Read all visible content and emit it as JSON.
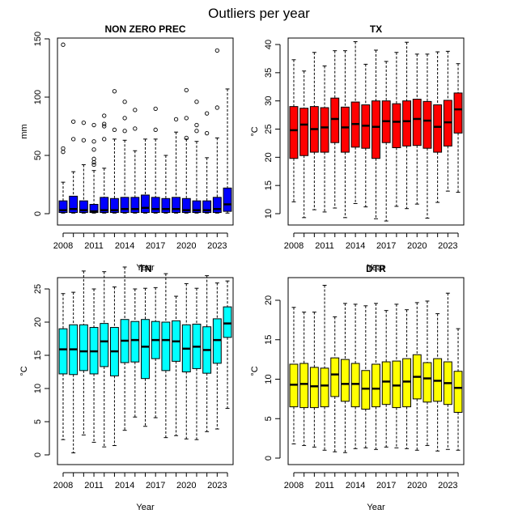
{
  "title": "Outliers per year",
  "chart_data": [
    {
      "type": "boxplot",
      "title": "NON ZERO PREC",
      "xlabel": "Year",
      "ylabel": "mm",
      "color": "#0000ff",
      "ylim": [
        0,
        150
      ],
      "yticks": [
        0,
        50,
        100,
        150
      ],
      "xtick_labels": [
        "2008",
        "2011",
        "2014",
        "2017",
        "2020",
        "2023"
      ],
      "years": [
        2008,
        2009,
        2010,
        2011,
        2012,
        2013,
        2014,
        2015,
        2016,
        2017,
        2018,
        2019,
        2020,
        2021,
        2022,
        2023,
        2024
      ],
      "boxes": [
        {
          "whislo": 0.5,
          "q1": 1,
          "med": 3,
          "q3": 11,
          "whishi": 27,
          "outliers": [
            53,
            56,
            145
          ]
        },
        {
          "whislo": 0.5,
          "q1": 1,
          "med": 4,
          "q3": 15,
          "whishi": 36,
          "outliers": [
            64,
            79
          ]
        },
        {
          "whislo": 0.5,
          "q1": 1,
          "med": 3,
          "q3": 11,
          "whishi": 42,
          "outliers": [
            63,
            78
          ]
        },
        {
          "whislo": 0.5,
          "q1": 1,
          "med": 2,
          "q3": 8,
          "whishi": 37,
          "outliers": [
            42,
            44,
            47,
            55,
            62,
            76
          ]
        },
        {
          "whislo": 0.5,
          "q1": 1,
          "med": 3,
          "q3": 14,
          "whishi": 39,
          "outliers": [
            64,
            75,
            77,
            84
          ]
        },
        {
          "whislo": 0.5,
          "q1": 1,
          "med": 3,
          "q3": 13,
          "whishi": 64,
          "outliers": [
            72,
            105
          ]
        },
        {
          "whislo": 0.5,
          "q1": 1,
          "med": 4,
          "q3": 14,
          "whishi": 63,
          "outliers": [
            71,
            82,
            96
          ]
        },
        {
          "whislo": 0.5,
          "q1": 1,
          "med": 4,
          "q3": 14,
          "whishi": 54,
          "outliers": [
            73,
            89
          ]
        },
        {
          "whislo": 0.5,
          "q1": 1,
          "med": 5,
          "q3": 16,
          "whishi": 64,
          "outliers": []
        },
        {
          "whislo": 0.5,
          "q1": 1,
          "med": 4,
          "q3": 14,
          "whishi": 64,
          "outliers": [
            72,
            90
          ]
        },
        {
          "whislo": 0.5,
          "q1": 1,
          "med": 4,
          "q3": 13,
          "whishi": 50,
          "outliers": []
        },
        {
          "whislo": 0.5,
          "q1": 1,
          "med": 4,
          "q3": 14,
          "whishi": 70,
          "outliers": [
            81
          ]
        },
        {
          "whislo": 0.5,
          "q1": 1,
          "med": 3,
          "q3": 13,
          "whishi": 64,
          "outliers": [
            65,
            82,
            106
          ]
        },
        {
          "whislo": 0.5,
          "q1": 1,
          "med": 3,
          "q3": 11,
          "whishi": 62,
          "outliers": [
            71,
            76,
            96
          ]
        },
        {
          "whislo": 0.5,
          "q1": 1,
          "med": 3,
          "q3": 11,
          "whishi": 48,
          "outliers": [
            69,
            86
          ]
        },
        {
          "whislo": 0.5,
          "q1": 1,
          "med": 4,
          "q3": 14,
          "whishi": 65,
          "outliers": [
            91,
            140
          ]
        },
        {
          "whislo": 0.5,
          "q1": 2,
          "med": 8,
          "q3": 22,
          "whishi": 107,
          "outliers": []
        }
      ]
    },
    {
      "type": "boxplot",
      "title": "TX",
      "xlabel": "Year",
      "ylabel": "°C",
      "color": "#ff0000",
      "ylim": [
        10,
        40
      ],
      "yticks": [
        10,
        15,
        20,
        25,
        30,
        35,
        40
      ],
      "xtick_labels": [
        "2008",
        "2011",
        "2014",
        "2017",
        "2020",
        "2023"
      ],
      "years": [
        2008,
        2009,
        2010,
        2011,
        2012,
        2013,
        2014,
        2015,
        2016,
        2017,
        2018,
        2019,
        2020,
        2021,
        2022,
        2023,
        2024
      ],
      "boxes": [
        {
          "whislo": 12.1,
          "q1": 19.8,
          "med": 24.8,
          "q3": 29.0,
          "whishi": 37.3,
          "outliers": []
        },
        {
          "whislo": 9.3,
          "q1": 20.3,
          "med": 25.8,
          "q3": 28.7,
          "whishi": 35.3,
          "outliers": []
        },
        {
          "whislo": 10.7,
          "q1": 20.9,
          "med": 25.0,
          "q3": 29.0,
          "whishi": 38.6,
          "outliers": []
        },
        {
          "whislo": 10.3,
          "q1": 20.9,
          "med": 25.3,
          "q3": 28.8,
          "whishi": 36.2,
          "outliers": []
        },
        {
          "whislo": 11.0,
          "q1": 22.6,
          "med": 26.8,
          "q3": 30.5,
          "whishi": 38.9,
          "outliers": []
        },
        {
          "whislo": 9.3,
          "q1": 20.9,
          "med": 25.3,
          "q3": 28.9,
          "whishi": 38.9,
          "outliers": []
        },
        {
          "whislo": 11.8,
          "q1": 21.8,
          "med": 25.9,
          "q3": 29.8,
          "whishi": 40.5,
          "outliers": []
        },
        {
          "whislo": 11.2,
          "q1": 21.6,
          "med": 25.6,
          "q3": 29.3,
          "whishi": 36.5,
          "outliers": []
        },
        {
          "whislo": 9.1,
          "q1": 19.8,
          "med": 25.4,
          "q3": 30.0,
          "whishi": 39.0,
          "outliers": []
        },
        {
          "whislo": 8.7,
          "q1": 22.6,
          "med": 26.4,
          "q3": 30.0,
          "whishi": 37.0,
          "outliers": []
        },
        {
          "whislo": 11.3,
          "q1": 21.7,
          "med": 26.3,
          "q3": 29.5,
          "whishi": 38.6,
          "outliers": []
        },
        {
          "whislo": 10.9,
          "q1": 22.0,
          "med": 26.4,
          "q3": 30.0,
          "whishi": 40.4,
          "outliers": []
        },
        {
          "whislo": 11.7,
          "q1": 22.1,
          "med": 26.8,
          "q3": 30.3,
          "whishi": 38.3,
          "outliers": []
        },
        {
          "whislo": 9.2,
          "q1": 21.6,
          "med": 26.5,
          "q3": 29.9,
          "whishi": 38.3,
          "outliers": []
        },
        {
          "whislo": 12.0,
          "q1": 20.9,
          "med": 25.4,
          "q3": 29.3,
          "whishi": 38.7,
          "outliers": []
        },
        {
          "whislo": 14.0,
          "q1": 22.0,
          "med": 26.2,
          "q3": 30.1,
          "whishi": 38.8,
          "outliers": []
        },
        {
          "whislo": 13.8,
          "q1": 24.3,
          "med": 28.5,
          "q3": 31.4,
          "whishi": 36.6,
          "outliers": []
        }
      ]
    },
    {
      "type": "boxplot",
      "title": "TN",
      "xlabel": "Year",
      "ylabel": "°C",
      "color": "#00ffff",
      "ylim": [
        0,
        25
      ],
      "yticks": [
        0,
        5,
        10,
        15,
        20,
        25
      ],
      "xtick_labels": [
        "2008",
        "2011",
        "2014",
        "2017",
        "2020",
        "2023"
      ],
      "years": [
        2008,
        2009,
        2010,
        2011,
        2012,
        2013,
        2014,
        2015,
        2016,
        2017,
        2018,
        2019,
        2020,
        2021,
        2022,
        2023,
        2024
      ],
      "boxes": [
        {
          "whislo": 2.3,
          "q1": 12.2,
          "med": 15.9,
          "q3": 19.0,
          "whishi": 24.3,
          "outliers": []
        },
        {
          "whislo": 0.3,
          "q1": 12.1,
          "med": 15.9,
          "q3": 19.6,
          "whishi": 24.5,
          "outliers": []
        },
        {
          "whislo": 3.0,
          "q1": 12.7,
          "med": 15.6,
          "q3": 19.6,
          "whishi": 27.7,
          "outliers": []
        },
        {
          "whislo": 1.9,
          "q1": 12.2,
          "med": 15.6,
          "q3": 19.2,
          "whishi": 25.0,
          "outliers": []
        },
        {
          "whislo": 1.2,
          "q1": 13.3,
          "med": 17.1,
          "q3": 19.8,
          "whishi": 27.6,
          "outliers": []
        },
        {
          "whislo": 1.4,
          "q1": 11.9,
          "med": 15.6,
          "q3": 19.2,
          "whishi": 25.3,
          "outliers": []
        },
        {
          "whislo": 3.7,
          "q1": 13.9,
          "med": 17.2,
          "q3": 20.4,
          "whishi": 28.3,
          "outliers": []
        },
        {
          "whislo": 5.7,
          "q1": 14.0,
          "med": 17.3,
          "q3": 20.1,
          "whishi": 25.0,
          "outliers": []
        },
        {
          "whislo": 4.3,
          "q1": 11.5,
          "med": 16.3,
          "q3": 20.4,
          "whishi": 25.1,
          "outliers": []
        },
        {
          "whislo": 5.6,
          "q1": 14.5,
          "med": 17.3,
          "q3": 20.1,
          "whishi": 25.2,
          "outliers": []
        },
        {
          "whislo": 2.6,
          "q1": 12.7,
          "med": 17.3,
          "q3": 20.0,
          "whishi": 27.3,
          "outliers": []
        },
        {
          "whislo": 2.9,
          "q1": 14.1,
          "med": 17.1,
          "q3": 20.2,
          "whishi": 23.9,
          "outliers": []
        },
        {
          "whislo": 2.4,
          "q1": 12.5,
          "med": 16.0,
          "q3": 19.6,
          "whishi": 25.8,
          "outliers": []
        },
        {
          "whislo": 2.3,
          "q1": 13.0,
          "med": 16.3,
          "q3": 19.7,
          "whishi": 25.1,
          "outliers": []
        },
        {
          "whislo": 3.5,
          "q1": 12.3,
          "med": 15.8,
          "q3": 19.3,
          "whishi": 27.0,
          "outliers": []
        },
        {
          "whislo": 3.9,
          "q1": 13.8,
          "med": 17.3,
          "q3": 20.5,
          "whishi": 25.9,
          "outliers": []
        },
        {
          "whislo": 7.0,
          "q1": 17.7,
          "med": 19.8,
          "q3": 22.3,
          "whishi": 26.2,
          "outliers": []
        }
      ]
    },
    {
      "type": "boxplot",
      "title": "DTR",
      "xlabel": "Year",
      "ylabel": "°C",
      "color": "#ffff00",
      "ylim": [
        0,
        20
      ],
      "yticks": [
        0,
        5,
        10,
        15,
        20
      ],
      "xtick_labels": [
        "2008",
        "2011",
        "2014",
        "2017",
        "2020",
        "2023"
      ],
      "years": [
        2008,
        2009,
        2010,
        2011,
        2012,
        2013,
        2014,
        2015,
        2016,
        2017,
        2018,
        2019,
        2020,
        2021,
        2022,
        2023,
        2024
      ],
      "boxes": [
        {
          "whislo": 1.8,
          "q1": 6.5,
          "med": 9.3,
          "q3": 11.9,
          "whishi": 19.1,
          "outliers": []
        },
        {
          "whislo": 1.6,
          "q1": 6.4,
          "med": 9.4,
          "q3": 12.0,
          "whishi": 18.5,
          "outliers": []
        },
        {
          "whislo": 1.4,
          "q1": 6.4,
          "med": 9.1,
          "q3": 11.5,
          "whishi": 18.5,
          "outliers": []
        },
        {
          "whislo": 1.0,
          "q1": 6.5,
          "med": 9.2,
          "q3": 11.4,
          "whishi": 21.9,
          "outliers": []
        },
        {
          "whislo": 0.8,
          "q1": 7.8,
          "med": 10.6,
          "q3": 12.7,
          "whishi": 17.9,
          "outliers": []
        },
        {
          "whislo": 0.7,
          "q1": 7.2,
          "med": 9.4,
          "q3": 12.5,
          "whishi": 19.6,
          "outliers": []
        },
        {
          "whislo": 1.2,
          "q1": 6.5,
          "med": 9.4,
          "q3": 12.0,
          "whishi": 19.5,
          "outliers": []
        },
        {
          "whislo": 1.3,
          "q1": 6.2,
          "med": 8.8,
          "q3": 11.1,
          "whishi": 19.3,
          "outliers": []
        },
        {
          "whislo": 1.1,
          "q1": 6.5,
          "med": 8.8,
          "q3": 11.9,
          "whishi": 19.6,
          "outliers": []
        },
        {
          "whislo": 1.4,
          "q1": 6.8,
          "med": 9.7,
          "q3": 12.2,
          "whishi": 18.7,
          "outliers": []
        },
        {
          "whislo": 1.3,
          "q1": 6.4,
          "med": 9.2,
          "q3": 12.3,
          "whishi": 19.5,
          "outliers": []
        },
        {
          "whislo": 1.2,
          "q1": 6.5,
          "med": 9.7,
          "q3": 12.6,
          "whishi": 18.8,
          "outliers": []
        },
        {
          "whislo": 1.0,
          "q1": 7.5,
          "med": 10.3,
          "q3": 13.1,
          "whishi": 19.7,
          "outliers": []
        },
        {
          "whislo": 1.6,
          "q1": 7.1,
          "med": 10.1,
          "q3": 12.1,
          "whishi": 19.9,
          "outliers": []
        },
        {
          "whislo": 0.9,
          "q1": 7.2,
          "med": 9.8,
          "q3": 12.6,
          "whishi": 18.3,
          "outliers": []
        },
        {
          "whislo": 1.1,
          "q1": 6.8,
          "med": 9.5,
          "q3": 12.2,
          "whishi": 20.9,
          "outliers": []
        },
        {
          "whislo": 1.0,
          "q1": 5.8,
          "med": 8.9,
          "q3": 11.0,
          "whishi": 16.4,
          "outliers": []
        }
      ]
    }
  ]
}
